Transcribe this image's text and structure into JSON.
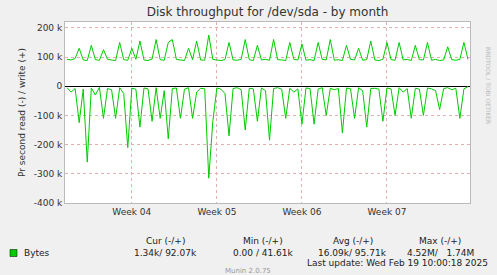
{
  "chart_data": {
    "type": "line",
    "title": "Disk throughput for /dev/sda - by month",
    "y_label": "Pr second read (-) / write (+)",
    "categories": [
      null,
      null,
      null,
      null,
      null,
      null,
      null,
      null,
      null,
      null,
      null,
      null,
      null,
      null,
      null,
      null,
      "Week 04",
      null,
      null,
      null,
      null,
      null,
      null,
      null,
      null,
      null,
      null,
      null,
      null,
      null,
      null,
      null,
      null,
      null,
      null,
      null,
      null,
      "Week 05",
      null,
      null,
      null,
      null,
      null,
      null,
      null,
      null,
      null,
      null,
      null,
      null,
      null,
      null,
      null,
      null,
      null,
      null,
      null,
      null,
      "Week 06",
      null,
      null,
      null,
      null,
      null,
      null,
      null,
      null,
      null,
      null,
      null,
      null,
      null,
      null,
      null,
      null,
      null,
      null,
      null,
      null,
      "Week 07",
      null,
      null,
      null,
      null,
      null,
      null,
      null,
      null,
      null,
      null,
      null,
      null,
      null,
      null,
      null,
      null,
      null,
      null,
      null,
      null
    ],
    "series": [
      {
        "name": "Bytes",
        "color": "#00cc00",
        "values": [
          92000,
          90000,
          95000,
          130000,
          90000,
          88000,
          140000,
          91000,
          89000,
          125000,
          92000,
          90000,
          88000,
          150000,
          91000,
          89000,
          130000,
          92000,
          155000,
          90000,
          88000,
          93000,
          160000,
          91000,
          89000,
          150000,
          160000,
          92000,
          90000,
          88000,
          130000,
          91000,
          155000,
          90000,
          89000,
          175000,
          92000,
          90000,
          88000,
          91000,
          150000,
          90000,
          89000,
          92000,
          160000,
          91000,
          88000,
          140000,
          90000,
          92000,
          89000,
          160000,
          91000,
          90000,
          88000,
          150000,
          92000,
          90000,
          145000,
          89000,
          91000,
          88000,
          150000,
          92000,
          90000,
          160000,
          89000,
          91000,
          88000,
          140000,
          92000,
          90000,
          130000,
          89000,
          91000,
          155000,
          90000,
          88000,
          92000,
          150000,
          91000,
          89000,
          150000,
          90000,
          92000,
          88000,
          140000,
          91000,
          90000,
          150000,
          89000,
          92000,
          88000,
          90000,
          135000,
          91000,
          89000,
          92000,
          150000,
          92070
        ]
      },
      {
        "name": "Bytes",
        "color": "#00cc00",
        "values": [
          -5000,
          -20000,
          -8000,
          -125000,
          -10000,
          -260000,
          -6000,
          -30000,
          -4000,
          -110000,
          -8000,
          -12000,
          -110000,
          -5000,
          -25000,
          -210000,
          -7000,
          -10000,
          -140000,
          -6000,
          -9000,
          -120000,
          -5000,
          -110000,
          -15000,
          -180000,
          -8000,
          -6000,
          -110000,
          -10000,
          -5000,
          -110000,
          -20000,
          -7000,
          -9000,
          -315000,
          -120000,
          -6000,
          -10000,
          -25000,
          -170000,
          -8000,
          -5000,
          -12000,
          -150000,
          -7000,
          -9000,
          -120000,
          -6000,
          -15000,
          -185000,
          -8000,
          -5000,
          -10000,
          -110000,
          -7000,
          -20000,
          -9000,
          -130000,
          -6000,
          -8000,
          -130000,
          -10000,
          -5000,
          -100000,
          -7000,
          -12000,
          -8000,
          -160000,
          -6000,
          -9000,
          -110000,
          -5000,
          -15000,
          -140000,
          -8000,
          -7000,
          -10000,
          -120000,
          -6000,
          -9000,
          -100000,
          -5000,
          -20000,
          -8000,
          -110000,
          -7000,
          -10000,
          -100000,
          -6000,
          -9000,
          -15000,
          -80000,
          -8000,
          -5000,
          -12000,
          -7000,
          -110000,
          -9000,
          -1340
        ]
      }
    ],
    "ylim": [
      -400000,
      220000
    ],
    "yticks": [
      {
        "value": 200000,
        "label": "200 k"
      },
      {
        "value": 100000,
        "label": "100 k"
      },
      0,
      {
        "value": -100000,
        "label": "-100 k"
      },
      {
        "value": -200000,
        "label": "-200 k"
      },
      {
        "value": -300000,
        "label": "-300 k"
      },
      {
        "value": -400000,
        "label": "-400 k"
      }
    ],
    "grid": true,
    "annotations": [
      "Cur (-/+)",
      "Min (-/+)",
      "Avg (-/+)",
      "Max (-/+)",
      "1.34k/ 92.07k",
      "0.00 / 41.61k",
      "16.09k/ 95.71k",
      "4.52M/   1.74M",
      "Last update: Wed Feb 19 10:00:18 2025",
      "Munin 2.0.75",
      "RRDTOOL / TOBI OETIKER"
    ]
  }
}
